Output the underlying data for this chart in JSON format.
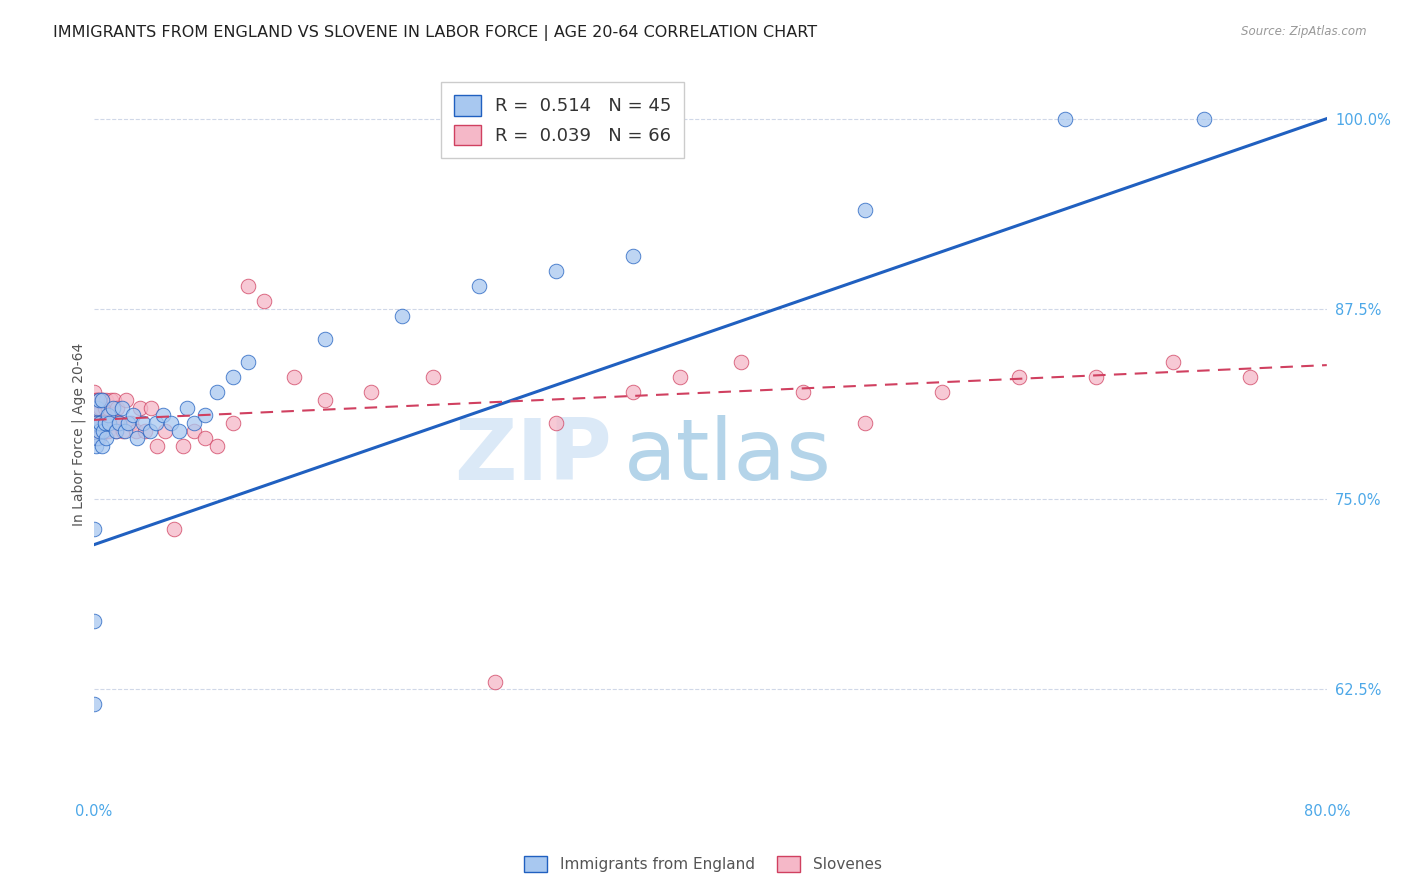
{
  "title": "IMMIGRANTS FROM ENGLAND VS SLOVENE IN LABOR FORCE | AGE 20-64 CORRELATION CHART",
  "source": "Source: ZipAtlas.com",
  "ylabel": "In Labor Force | Age 20-64",
  "legend_england": "R =  0.514   N = 45",
  "legend_slovene": "R =  0.039   N = 66",
  "xlim": [
    0.0,
    0.8
  ],
  "ylim": [
    0.555,
    1.03
  ],
  "yticks": [
    0.625,
    0.75,
    0.875,
    1.0
  ],
  "ytick_labels": [
    "62.5%",
    "75.0%",
    "87.5%",
    "100.0%"
  ],
  "xticks": [
    0.0,
    0.1,
    0.2,
    0.3,
    0.4,
    0.5,
    0.6,
    0.7,
    0.8
  ],
  "xtick_labels": [
    "0.0%",
    "",
    "",
    "",
    "",
    "",
    "",
    "",
    "80.0%"
  ],
  "color_england": "#a8c8f0",
  "color_slovene": "#f5b8c8",
  "color_england_line": "#2060c0",
  "color_slovene_line": "#d04060",
  "color_axis_labels": "#4da8e8",
  "background": "#ffffff",
  "watermark_zip": "ZIP",
  "watermark_atlas": "atlas",
  "grid_color": "#d0d8e8",
  "title_fontsize": 11.5,
  "axis_label_fontsize": 10,
  "tick_fontsize": 10.5,
  "england_x": [
    0.0,
    0.0,
    0.0,
    0.001,
    0.001,
    0.002,
    0.002,
    0.003,
    0.003,
    0.004,
    0.005,
    0.005,
    0.006,
    0.007,
    0.008,
    0.009,
    0.01,
    0.012,
    0.014,
    0.016,
    0.018,
    0.02,
    0.022,
    0.025,
    0.028,
    0.032,
    0.036,
    0.04,
    0.045,
    0.05,
    0.055,
    0.06,
    0.065,
    0.072,
    0.08,
    0.09,
    0.1,
    0.15,
    0.2,
    0.25,
    0.3,
    0.35,
    0.5,
    0.63,
    0.72
  ],
  "england_y": [
    0.615,
    0.67,
    0.73,
    0.785,
    0.8,
    0.79,
    0.81,
    0.795,
    0.815,
    0.8,
    0.785,
    0.815,
    0.795,
    0.8,
    0.79,
    0.805,
    0.8,
    0.81,
    0.795,
    0.8,
    0.81,
    0.795,
    0.8,
    0.805,
    0.79,
    0.8,
    0.795,
    0.8,
    0.805,
    0.8,
    0.795,
    0.81,
    0.8,
    0.805,
    0.82,
    0.83,
    0.84,
    0.855,
    0.87,
    0.89,
    0.9,
    0.91,
    0.94,
    1.0,
    1.0
  ],
  "slovene_x": [
    0.0,
    0.0,
    0.0,
    0.0,
    0.0,
    0.001,
    0.001,
    0.001,
    0.002,
    0.002,
    0.002,
    0.003,
    0.003,
    0.003,
    0.004,
    0.004,
    0.005,
    0.005,
    0.006,
    0.006,
    0.007,
    0.007,
    0.008,
    0.008,
    0.009,
    0.009,
    0.01,
    0.011,
    0.012,
    0.013,
    0.014,
    0.015,
    0.017,
    0.019,
    0.021,
    0.024,
    0.027,
    0.03,
    0.033,
    0.037,
    0.041,
    0.046,
    0.052,
    0.058,
    0.065,
    0.072,
    0.08,
    0.09,
    0.1,
    0.11,
    0.13,
    0.15,
    0.18,
    0.22,
    0.26,
    0.3,
    0.35,
    0.38,
    0.42,
    0.46,
    0.5,
    0.55,
    0.6,
    0.65,
    0.7,
    0.75
  ],
  "slovene_y": [
    0.795,
    0.8,
    0.81,
    0.815,
    0.82,
    0.79,
    0.8,
    0.815,
    0.795,
    0.805,
    0.815,
    0.79,
    0.8,
    0.815,
    0.795,
    0.81,
    0.795,
    0.815,
    0.8,
    0.815,
    0.795,
    0.81,
    0.8,
    0.815,
    0.795,
    0.81,
    0.8,
    0.815,
    0.8,
    0.815,
    0.795,
    0.81,
    0.8,
    0.795,
    0.815,
    0.8,
    0.795,
    0.81,
    0.795,
    0.81,
    0.785,
    0.795,
    0.73,
    0.785,
    0.795,
    0.79,
    0.785,
    0.8,
    0.89,
    0.88,
    0.83,
    0.815,
    0.82,
    0.83,
    0.63,
    0.8,
    0.82,
    0.83,
    0.84,
    0.82,
    0.8,
    0.82,
    0.83,
    0.83,
    0.84,
    0.83
  ]
}
